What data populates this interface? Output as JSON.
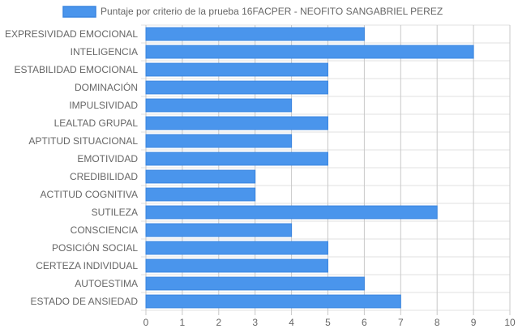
{
  "chart_data": {
    "type": "bar",
    "orientation": "horizontal",
    "categories": [
      "EXPRESIVIDAD EMOCIONAL",
      "INTELIGENCIA",
      "ESTABILIDAD EMOCIONAL",
      "DOMINACIÓN",
      "IMPULSIVIDAD",
      "LEALTAD GRUPAL",
      "APTITUD SITUACIONAL",
      "EMOTIVIDAD",
      "CREDIBILIDAD",
      "ACTITUD COGNITIVA",
      "SUTILEZA",
      "CONSCIENCIA",
      "POSICIÓN SOCIAL",
      "CERTEZA INDIVIDUAL",
      "AUTOESTIMA",
      "ESTADO DE ANSIEDAD"
    ],
    "series": [
      {
        "name": "Puntaje por criterio de la prueba 16FACPER - NEOFITO SANGABRIEL PEREZ",
        "values": [
          6,
          9,
          5,
          5,
          4,
          5,
          4,
          5,
          3,
          3,
          8,
          4,
          5,
          5,
          6,
          7
        ]
      }
    ],
    "xlim": [
      0,
      10
    ],
    "x_ticks": [
      "0",
      "1",
      "2",
      "3",
      "4",
      "5",
      "6",
      "7",
      "8",
      "9",
      "10"
    ],
    "grid": true,
    "legend_position": "top",
    "colors": {
      "bar_fill": "#4a95ec",
      "bar_stroke": "#3a85e0",
      "grid": "#e0e0e0",
      "grid_major": "#c8c8c8",
      "text": "#666666"
    }
  }
}
